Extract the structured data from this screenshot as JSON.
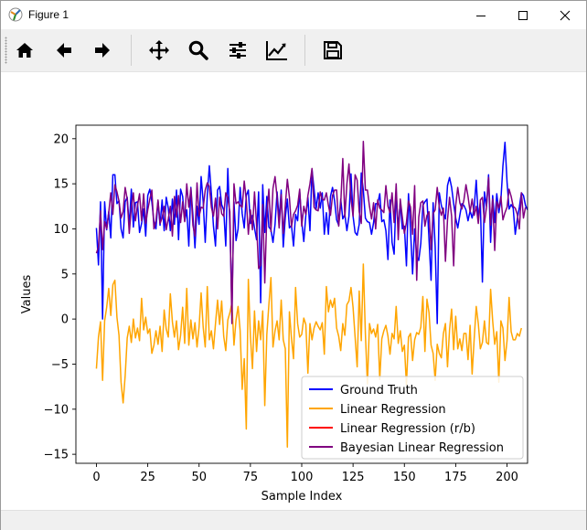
{
  "window": {
    "title": "Figure 1"
  },
  "toolbar": {
    "buttons": [
      {
        "name": "home",
        "tooltip": "Home"
      },
      {
        "name": "back",
        "tooltip": "Back"
      },
      {
        "name": "forward",
        "tooltip": "Forward"
      },
      {
        "name": "pan",
        "tooltip": "Pan"
      },
      {
        "name": "zoom",
        "tooltip": "Zoom"
      },
      {
        "name": "configure-subplots",
        "tooltip": "Subplots"
      },
      {
        "name": "edit-axis",
        "tooltip": "Customize"
      },
      {
        "name": "save",
        "tooltip": "Save"
      }
    ]
  },
  "chart_data": {
    "type": "line",
    "title": "",
    "xlabel": "Sample Index",
    "ylabel": "Values",
    "xlim": [
      -10,
      210
    ],
    "ylim": [
      -16,
      21.5
    ],
    "xticks": [
      0,
      25,
      50,
      75,
      100,
      125,
      150,
      175,
      200
    ],
    "yticks": [
      -15,
      -10,
      -5,
      0,
      5,
      10,
      15,
      20
    ],
    "legend_position": "lower-right",
    "grid": false,
    "series": [
      {
        "name": "Ground Truth",
        "color": "#0000ff",
        "values": [
          10.1,
          6.0,
          13.0,
          0.0,
          13.0,
          9.9,
          11.9,
          9.0,
          16.0,
          16.0,
          12.8,
          13.1,
          10.0,
          9.0,
          13.0,
          13.5,
          10.3,
          14.4,
          10.2,
          12.9,
          13.0,
          9.6,
          10.6,
          12.2,
          9.2,
          13.7,
          14.4,
          13.0,
          10.8,
          10.0,
          13.1,
          10.4,
          13.2,
          9.8,
          13.5,
          12.3,
          9.8,
          13.3,
          10.5,
          14.3,
          8.8,
          14.4,
          13.6,
          10.9,
          12.1,
          8.1,
          14.6,
          11.5,
          7.9,
          12.5,
          10.5,
          15.8,
          13.0,
          8.5,
          13.7,
          17.0,
          13.9,
          10.3,
          8.1,
          14.3,
          14.7,
          12.7,
          12.1,
          8.1,
          16.7,
          10.4,
          1.2,
          13.0,
          8.7,
          10.0,
          14.6,
          11.7,
          10.1,
          13.7,
          14.3,
          10.6,
          11.5,
          10.1,
          8.8,
          14.1,
          1.8,
          14.9,
          9.6,
          13.6,
          10.2,
          9.9,
          8.5,
          10.5,
          14.1,
          11.0,
          14.3,
          8.0,
          11.3,
          13.3,
          10.1,
          10.4,
          8.1,
          11.6,
          10.9,
          14.2,
          10.8,
          8.6,
          11.5,
          13.5,
          9.8,
          16.6,
          14.4,
          12.2,
          14.0,
          12.3,
          14.0,
          9.4,
          11.8,
          9.4,
          13.6,
          14.6,
          13.1,
          11.0,
          10.4,
          13.3,
          11.1,
          11.6,
          9.8,
          11.4,
          16.1,
          11.4,
          9.6,
          9.3,
          10.5,
          16.2,
          14.3,
          11.2,
          10.8,
          10.7,
          9.4,
          10.7,
          12.8,
          12.8,
          13.9,
          10.8,
          11.0,
          9.8,
          6.6,
          13.2,
          8.5,
          7.2,
          14.1,
          10.0,
          13.0,
          10.0,
          10.3,
          5.9,
          13.9,
          9.8,
          5.0,
          10.0,
          7.0,
          6.5,
          8.4,
          12.6,
          13.0,
          13.3,
          8.8,
          4.3,
          12.9,
          8.0,
          -0.5,
          14.0,
          12.6,
          11.8,
          11.1,
          14.8,
          15.7,
          14.6,
          12.8,
          11.2,
          10.1,
          11.5,
          12.8,
          12.6,
          12.1,
          10.9,
          12.0,
          11.2,
          12.4,
          15.4,
          11.2,
          12.9,
          4.1,
          14.1,
          12.5,
          16.0,
          8.5,
          13.7,
          10.7,
          13.9,
          11.8,
          13.2,
          17.0,
          19.6,
          15.2,
          12.2,
          12.7,
          12.3,
          9.4,
          11.1,
          12.4,
          14.0,
          13.7,
          12.6,
          12.1
        ]
      },
      {
        "name": "Linear Regression",
        "color": "#ffa500",
        "values": [
          -5.5,
          -2.0,
          -0.3,
          -6.8,
          -0.2,
          1.3,
          3.4,
          0.4,
          3.8,
          4.3,
          0.2,
          -1.8,
          -7.0,
          -9.3,
          -6.3,
          -2.1,
          -0.8,
          -2.6,
          0.0,
          -2.1,
          -1.0,
          -2.4,
          2.3,
          -1.2,
          0.2,
          -1.6,
          -1.1,
          -3.8,
          -2.9,
          -1.3,
          -2.8,
          -0.8,
          -3.6,
          1.0,
          -1.1,
          -2.0,
          2.8,
          -0.3,
          -2.0,
          -0.2,
          -3.4,
          -1.8,
          1.3,
          -2.7,
          3.4,
          -2.9,
          -0.1,
          -2.2,
          -0.4,
          -3.1,
          -0.9,
          2.9,
          -0.9,
          -3.1,
          3.6,
          -2.3,
          -1.3,
          -3.3,
          -0.5,
          2.1,
          -0.6,
          2.0,
          -1.9,
          -3.5,
          -0.1,
          0.7,
          1.8,
          -2.9,
          -0.1,
          1.4,
          -1.3,
          -7.8,
          -4.4,
          -12.2,
          4.4,
          -1.9,
          -5.5,
          0.9,
          -3.6,
          -0.2,
          -2.3,
          0.9,
          -9.6,
          -1.7,
          1.6,
          4.6,
          -3.1,
          -1.3,
          -0.2,
          -2.3,
          2.1,
          -2.3,
          -3.3,
          -14.2,
          0.8,
          -2.1,
          -4.4,
          3.5,
          -0.5,
          -2.0,
          -1.7,
          0.1,
          -0.6,
          -6.0,
          -0.5,
          -2.3,
          -1.0,
          -0.3,
          -0.8,
          -1.2,
          -0.4,
          -3.9,
          3.6,
          0.8,
          2.1,
          1.3,
          2.3,
          -1.0,
          -1.9,
          -3.5,
          -0.5,
          -1.8,
          1.6,
          2.0,
          3.5,
          1.3,
          -2.0,
          -5.3,
          3.1,
          -2.4,
          6.1,
          -1.6,
          -7.2,
          -0.5,
          -1.6,
          -1.1,
          -2.0,
          -0.6,
          -6.7,
          -2.2,
          -1.3,
          -0.7,
          -1.9,
          -3.9,
          -1.6,
          -2.2,
          1.4,
          -2.7,
          -1.3,
          -3.6,
          -2.9,
          -7.3,
          -2.0,
          -1.6,
          -4.6,
          -2.3,
          -1.5,
          -1.7,
          -0.9,
          2.5,
          -3.6,
          2.2,
          0.7,
          -2.9,
          -3.8,
          -6.8,
          -2.8,
          -3.8,
          -4.3,
          -1.6,
          -0.5,
          -5.3,
          -1.2,
          1.1,
          -3.4,
          0.3,
          -3.3,
          -2.2,
          -3.5,
          -1.6,
          -1.6,
          -4.5,
          -0.7,
          -6.1,
          -2.2,
          1.4,
          -0.5,
          -3.3,
          -2.6,
          -0.2,
          -2.6,
          -2.8,
          3.3,
          -0.2,
          -2.8,
          -1.4,
          -7.0,
          -0.2,
          -1.0,
          -4.6,
          -2.4,
          2.4,
          -1.4,
          -2.3,
          -2.3,
          -1.6,
          -1.9,
          -1.0
        ]
      },
      {
        "name": "Linear Regression (r/b)",
        "color": "#ff0000",
        "values": []
      },
      {
        "name": "Bayesian Linear Regression",
        "color": "#800080",
        "values": [
          7.3,
          8.0,
          12.0,
          7.7,
          10.8,
          10.0,
          11.8,
          14.0,
          11.6,
          14.9,
          14.1,
          13.1,
          11.2,
          11.9,
          14.6,
          13.3,
          9.5,
          12.4,
          14.0,
          10.9,
          12.6,
          13.9,
          10.9,
          13.9,
          10.6,
          12.1,
          13.3,
          14.3,
          10.0,
          10.9,
          13.2,
          10.6,
          11.2,
          12.5,
          9.9,
          11.1,
          12.5,
          9.2,
          13.6,
          11.3,
          13.7,
          10.7,
          13.0,
          10.8,
          15.0,
          12.4,
          14.5,
          10.4,
          9.2,
          15.1,
          11.4,
          12.4,
          12.3,
          14.3,
          15.1,
          14.7,
          12.4,
          11.4,
          13.4,
          10.0,
          13.5,
          11.7,
          11.4,
          14.0,
          13.4,
          11.9,
          -0.5,
          15.0,
          12.8,
          13.0,
          12.6,
          12.4,
          15.3,
          13.2,
          9.4,
          12.1,
          9.9,
          14.1,
          10.5,
          5.6,
          6.0,
          12.7,
          4.0,
          11.6,
          14.4,
          9.7,
          14.5,
          15.8,
          13.5,
          10.1,
          13.8,
          9.5,
          12.6,
          15.5,
          13.5,
          10.2,
          11.6,
          12.0,
          12.6,
          14.4,
          10.3,
          12.5,
          11.6,
          13.7,
          15.0,
          16.7,
          12.4,
          12.1,
          12.0,
          14.1,
          13.3,
          13.2,
          14.0,
          12.6,
          11.5,
          13.7,
          14.3,
          14.3,
          10.3,
          12.8,
          17.8,
          11.3,
          15.0,
          17.2,
          13.3,
          11.4,
          16.0,
          15.4,
          11.9,
          10.6,
          19.7,
          14.3,
          14.3,
          12.5,
          11.1,
          12.9,
          10.0,
          13.2,
          12.3,
          12.1,
          11.8,
          14.8,
          12.5,
          11.8,
          14.0,
          10.7,
          15.0,
          8.8,
          13.3,
          11.3,
          9.5,
          10.7,
          13.1,
          12.4,
          9.4,
          14.8,
          4.3,
          11.3,
          12.9,
          13.1,
          10.3,
          11.5,
          11.9,
          7.7,
          11.7,
          12.1,
          14.6,
          12.4,
          11.5,
          12.3,
          6.4,
          11.0,
          13.5,
          11.4,
          5.9,
          12.6,
          14.6,
          12.9,
          12.2,
          13.2,
          14.9,
          13.6,
          11.9,
          13.3,
          11.5,
          12.5,
          10.6,
          13.2,
          13.5,
          10.7,
          12.4,
          15.7,
          10.4,
          13.3,
          7.6,
          13.0,
          12.3,
          13.6,
          11.0,
          11.8,
          12.4,
          14.4,
          13.6,
          12.5,
          12.3,
          11.6,
          10.0,
          14.0,
          11.2,
          12.4
        ]
      }
    ]
  }
}
